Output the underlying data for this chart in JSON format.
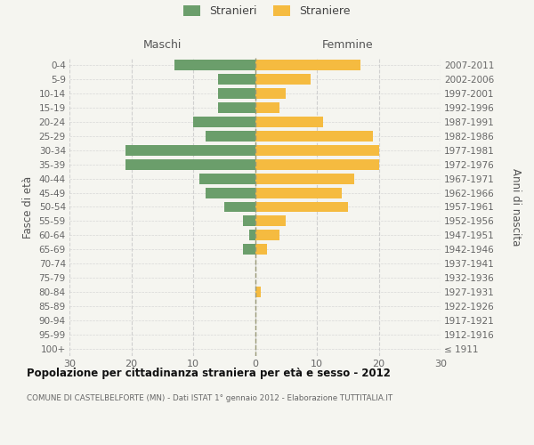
{
  "age_groups": [
    "100+",
    "95-99",
    "90-94",
    "85-89",
    "80-84",
    "75-79",
    "70-74",
    "65-69",
    "60-64",
    "55-59",
    "50-54",
    "45-49",
    "40-44",
    "35-39",
    "30-34",
    "25-29",
    "20-24",
    "15-19",
    "10-14",
    "5-9",
    "0-4"
  ],
  "birth_years": [
    "≤ 1911",
    "1912-1916",
    "1917-1921",
    "1922-1926",
    "1927-1931",
    "1932-1936",
    "1937-1941",
    "1942-1946",
    "1947-1951",
    "1952-1956",
    "1957-1961",
    "1962-1966",
    "1967-1971",
    "1972-1976",
    "1977-1981",
    "1982-1986",
    "1987-1991",
    "1992-1996",
    "1997-2001",
    "2002-2006",
    "2007-2011"
  ],
  "males": [
    0,
    0,
    0,
    0,
    0,
    0,
    0,
    2,
    1,
    2,
    5,
    8,
    9,
    21,
    21,
    8,
    10,
    6,
    6,
    6,
    13
  ],
  "females": [
    0,
    0,
    0,
    0,
    1,
    0,
    0,
    2,
    4,
    5,
    15,
    14,
    16,
    20,
    20,
    19,
    11,
    4,
    5,
    9,
    17
  ],
  "male_color": "#6b9e6b",
  "female_color": "#f5bb40",
  "background_color": "#f5f5f0",
  "grid_color": "#cccccc",
  "title": "Popolazione per cittadinanza straniera per età e sesso - 2012",
  "subtitle": "COMUNE DI CASTELBELFORTE (MN) - Dati ISTAT 1° gennaio 2012 - Elaborazione TUTTITALIA.IT",
  "ylabel_left": "Fasce di età",
  "ylabel_right": "Anni di nascita",
  "xlabel_left": "Maschi",
  "xlabel_right": "Femmine",
  "legend_male": "Stranieri",
  "legend_female": "Straniere",
  "xlim": 30,
  "bar_height": 0.75,
  "figsize": [
    6.0,
    5.0
  ],
  "dpi": 100
}
